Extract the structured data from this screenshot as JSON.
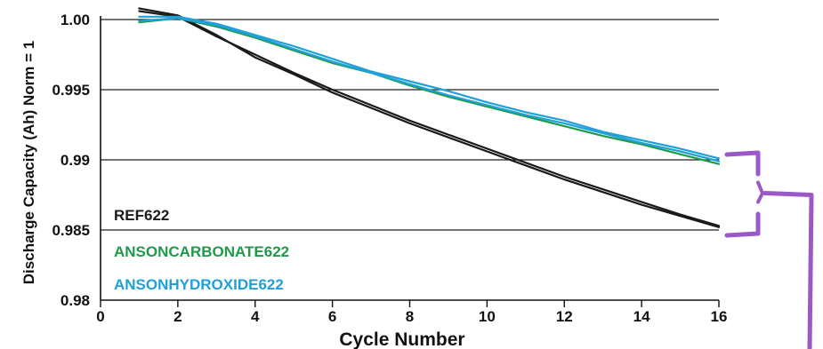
{
  "chart_data": {
    "type": "line",
    "xlabel": "Cycle Number",
    "ylabel": "Discharge Capacity (Ah) Norm = 1",
    "xlim": [
      0,
      16
    ],
    "ylim": [
      0.98,
      1.0
    ],
    "xticks": [
      0,
      2,
      4,
      6,
      8,
      10,
      12,
      14,
      16
    ],
    "xtick_labels": [
      "0",
      "2",
      "4",
      "6",
      "8",
      "10",
      "12",
      "14",
      "16"
    ],
    "yticks": [
      0.98,
      0.985,
      0.99,
      0.995,
      1.0
    ],
    "ytick_labels": [
      "0.98",
      "0.985",
      "0.99",
      "0.995",
      "1.00"
    ],
    "grid": "horizontal",
    "legend_position": "bottom-left",
    "series": [
      {
        "name": "REF622",
        "color": "#1a1a1a",
        "x": [
          1,
          2,
          3,
          4,
          5,
          6,
          7,
          8,
          9,
          10,
          11,
          12,
          13,
          14,
          15,
          16
        ],
        "y": [
          1.0008,
          1.0003,
          0.9989,
          0.9973,
          0.9961,
          0.9948,
          0.9937,
          0.9926,
          0.9916,
          0.9906,
          0.9896,
          0.9886,
          0.9877,
          0.9868,
          0.986,
          0.9852
        ]
      },
      {
        "name": "REF622",
        "color": "#1a1a1a",
        "x": [
          1,
          2,
          3,
          4,
          5,
          6,
          7,
          8,
          9,
          10,
          11,
          12,
          13,
          14,
          15,
          16
        ],
        "y": [
          1.0006,
          1.0002,
          0.9988,
          0.9975,
          0.9962,
          0.995,
          0.9939,
          0.9928,
          0.9918,
          0.9908,
          0.9898,
          0.9888,
          0.9879,
          0.987,
          0.9861,
          0.9853
        ]
      },
      {
        "name": "ANSONCARBONATE622",
        "color": "#1e9a4a",
        "x": [
          1,
          2,
          3,
          4,
          5,
          6,
          7,
          8,
          9,
          10,
          11,
          12,
          13,
          14,
          15,
          16
        ],
        "y": [
          0.9998,
          1.0001,
          0.9995,
          0.9987,
          0.9978,
          0.9969,
          0.9962,
          0.9953,
          0.9945,
          0.9938,
          0.9931,
          0.9924,
          0.9917,
          0.9911,
          0.9904,
          0.9897
        ]
      },
      {
        "name": "ANSONHYDROXIDE622",
        "color": "#1fa0d8",
        "x": [
          1,
          2,
          3,
          4,
          5,
          6,
          7,
          8,
          9,
          10,
          11,
          12,
          13,
          14,
          15,
          16
        ],
        "y": [
          1.0002,
          1.0002,
          0.9997,
          0.9989,
          0.9981,
          0.9972,
          0.9963,
          0.9956,
          0.9949,
          0.9941,
          0.9934,
          0.9928,
          0.992,
          0.9914,
          0.9908,
          0.9901
        ]
      },
      {
        "name": "ANSONHYDROXIDE622",
        "color": "#1fa0d8",
        "x": [
          1,
          2,
          3,
          4,
          5,
          6,
          7,
          8,
          9,
          10,
          11,
          12,
          13,
          14,
          15,
          16
        ],
        "y": [
          0.9999,
          1.0001,
          0.9996,
          0.9988,
          0.9979,
          0.997,
          0.9962,
          0.9954,
          0.9946,
          0.9939,
          0.9932,
          0.9926,
          0.9919,
          0.9912,
          0.9906,
          0.9899
        ]
      }
    ],
    "legend": [
      {
        "label": "REF622",
        "color": "#1a1a1a"
      },
      {
        "label": "ANSONCARBONATE622",
        "color": "#1e9a4a"
      },
      {
        "label": "ANSONHYDROXIDE622",
        "color": "#1fa0d8"
      }
    ],
    "annotation": {
      "type": "bracket",
      "color": "#9b59c8",
      "y_range": [
        0.985,
        0.99
      ]
    }
  }
}
